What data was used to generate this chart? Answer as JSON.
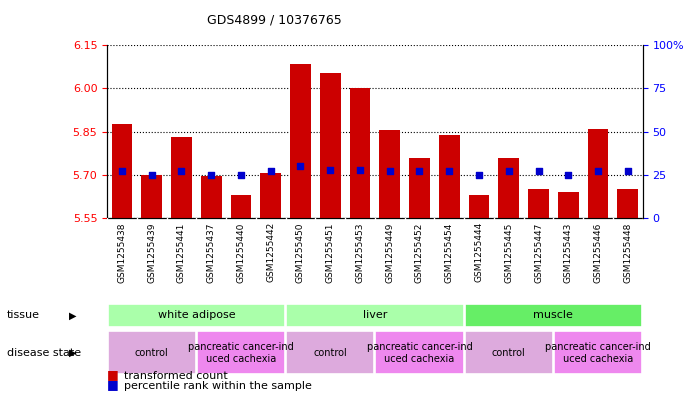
{
  "title": "GDS4899 / 10376765",
  "samples": [
    "GSM1255438",
    "GSM1255439",
    "GSM1255441",
    "GSM1255437",
    "GSM1255440",
    "GSM1255442",
    "GSM1255450",
    "GSM1255451",
    "GSM1255453",
    "GSM1255449",
    "GSM1255452",
    "GSM1255454",
    "GSM1255444",
    "GSM1255445",
    "GSM1255447",
    "GSM1255443",
    "GSM1255446",
    "GSM1255448"
  ],
  "bar_values": [
    5.875,
    5.7,
    5.83,
    5.695,
    5.63,
    5.705,
    6.085,
    6.055,
    6.0,
    5.855,
    5.76,
    5.84,
    5.63,
    5.76,
    5.65,
    5.64,
    5.86,
    5.65
  ],
  "percentile_values": [
    27,
    25,
    27,
    25,
    25,
    27,
    30,
    28,
    28,
    27,
    27,
    27,
    25,
    27,
    27,
    25,
    27,
    27
  ],
  "ymin": 5.55,
  "ymax": 6.15,
  "yticks": [
    5.55,
    5.7,
    5.85,
    6.0,
    6.15
  ],
  "right_yticks_vals": [
    0,
    25,
    50,
    75,
    100
  ],
  "right_ytick_labels": [
    "0",
    "25",
    "50",
    "75",
    "100%"
  ],
  "bar_color": "#CC0000",
  "dot_color": "#0000CC",
  "plot_bg_color": "#FFFFFF",
  "xtick_bg_color": "#C8C8C8",
  "tissue_groups": [
    {
      "label": "white adipose",
      "start": 0,
      "end": 6,
      "color": "#AAFFAA"
    },
    {
      "label": "liver",
      "start": 6,
      "end": 12,
      "color": "#AAFFAA"
    },
    {
      "label": "muscle",
      "start": 12,
      "end": 18,
      "color": "#66EE66"
    }
  ],
  "disease_groups": [
    {
      "label": "control",
      "start": 0,
      "end": 3,
      "color": "#DDAADD"
    },
    {
      "label": "pancreatic cancer-ind\nuced cachexia",
      "start": 3,
      "end": 6,
      "color": "#EE88EE"
    },
    {
      "label": "control",
      "start": 6,
      "end": 9,
      "color": "#DDAADD"
    },
    {
      "label": "pancreatic cancer-ind\nuced cachexia",
      "start": 9,
      "end": 12,
      "color": "#EE88EE"
    },
    {
      "label": "control",
      "start": 12,
      "end": 15,
      "color": "#DDAADD"
    },
    {
      "label": "pancreatic cancer-ind\nuced cachexia",
      "start": 15,
      "end": 18,
      "color": "#EE88EE"
    }
  ],
  "legend_bar_label": "transformed count",
  "legend_dot_label": "percentile rank within the sample",
  "tissue_label": "tissue",
  "disease_label": "disease state"
}
